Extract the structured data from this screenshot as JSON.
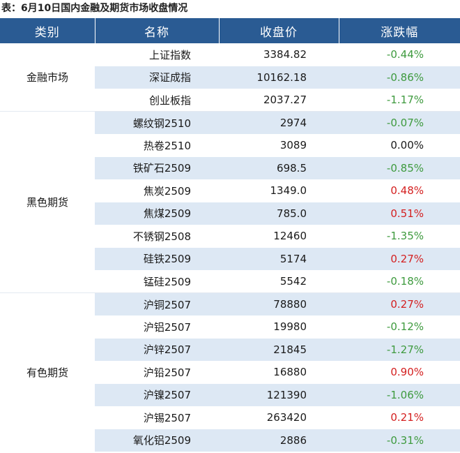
{
  "caption": "表：6月10日国内金融及期货市场收盘情况",
  "headers": [
    "类别",
    "名称",
    "收盘价",
    "涨跌幅"
  ],
  "colors": {
    "header_bg": "#2a5b93",
    "stripe_bg": "#dde8f4",
    "negative": "#3e9a3e",
    "positive": "#d42020"
  },
  "groups": [
    {
      "category": "金融市场",
      "rows": [
        {
          "name": "上证指数",
          "close": "3384.82",
          "change": "-0.44%",
          "dir": "neg",
          "stripe": false
        },
        {
          "name": "深证成指",
          "close": "10162.18",
          "change": "-0.86%",
          "dir": "neg",
          "stripe": true
        },
        {
          "name": "创业板指",
          "close": "2037.27",
          "change": "-1.17%",
          "dir": "neg",
          "stripe": false
        }
      ]
    },
    {
      "category": "黑色期货",
      "rows": [
        {
          "name": "螺纹钢2510",
          "close": "2974",
          "change": "-0.07%",
          "dir": "neg",
          "stripe": true
        },
        {
          "name": "热卷2510",
          "close": "3089",
          "change": "0.00%",
          "dir": "zero",
          "stripe": false
        },
        {
          "name": "铁矿石2509",
          "close": "698.5",
          "change": "-0.85%",
          "dir": "neg",
          "stripe": true
        },
        {
          "name": "焦炭2509",
          "close": "1349.0",
          "change": "0.48%",
          "dir": "pos",
          "stripe": false
        },
        {
          "name": "焦煤2509",
          "close": "785.0",
          "change": "0.51%",
          "dir": "pos",
          "stripe": true
        },
        {
          "name": "不锈钢2508",
          "close": "12460",
          "change": "-1.35%",
          "dir": "neg",
          "stripe": false
        },
        {
          "name": "硅铁2509",
          "close": "5174",
          "change": "0.27%",
          "dir": "pos",
          "stripe": true
        },
        {
          "name": "锰硅2509",
          "close": "5542",
          "change": "-0.18%",
          "dir": "neg",
          "stripe": false
        }
      ]
    },
    {
      "category": "有色期货",
      "rows": [
        {
          "name": "沪铜2507",
          "close": "78880",
          "change": "0.27%",
          "dir": "pos",
          "stripe": true
        },
        {
          "name": "沪铝2507",
          "close": "19980",
          "change": "-0.12%",
          "dir": "neg",
          "stripe": false
        },
        {
          "name": "沪锌2507",
          "close": "21845",
          "change": "-1.27%",
          "dir": "neg",
          "stripe": true
        },
        {
          "name": "沪铅2507",
          "close": "16880",
          "change": "0.90%",
          "dir": "pos",
          "stripe": false
        },
        {
          "name": "沪镍2507",
          "close": "121390",
          "change": "-1.06%",
          "dir": "neg",
          "stripe": true
        },
        {
          "name": "沪锡2507",
          "close": "263420",
          "change": "0.21%",
          "dir": "pos",
          "stripe": false
        },
        {
          "name": "氧化铝2509",
          "close": "2886",
          "change": "-0.31%",
          "dir": "neg",
          "stripe": true
        }
      ]
    }
  ]
}
